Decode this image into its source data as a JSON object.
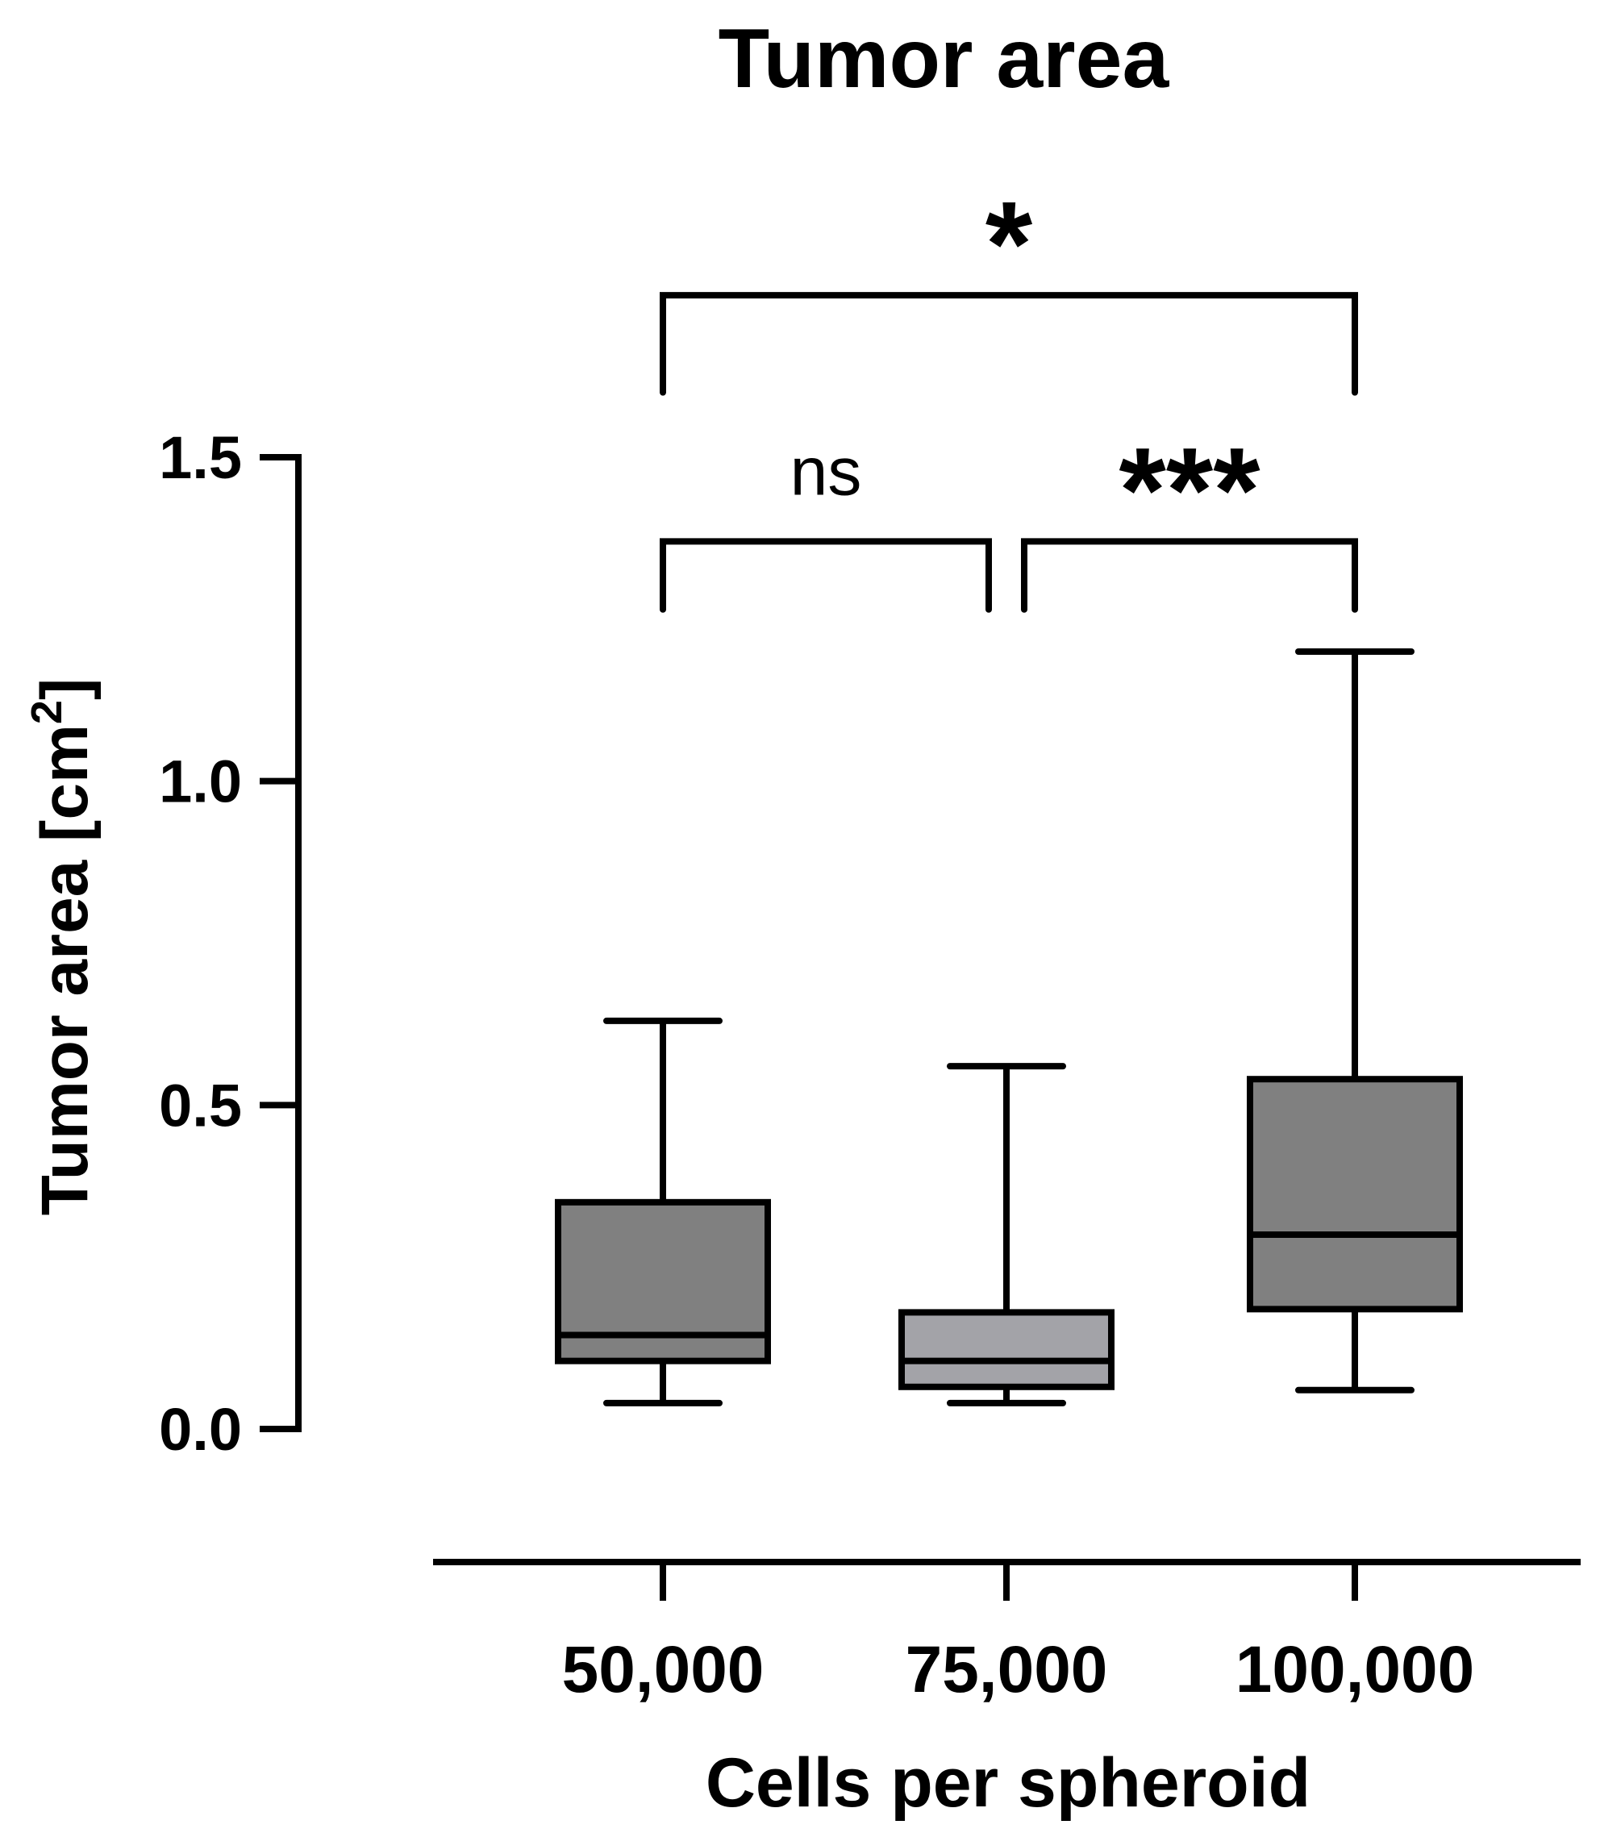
{
  "chart_data": {
    "type": "box",
    "title": "Tumor area",
    "xlabel": "Cells per spheroid",
    "ylabel": {
      "main": "Tumor area [cm",
      "superscript": "2",
      "closing": "]"
    },
    "ylim": [
      0.0,
      1.5
    ],
    "yticks": [
      {
        "value": 0.0,
        "label": "0.0"
      },
      {
        "value": 0.5,
        "label": "0.5"
      },
      {
        "value": 1.0,
        "label": "1.0"
      },
      {
        "value": 1.5,
        "label": "1.5"
      }
    ],
    "categories": [
      "50,000",
      "75,000",
      "100,000"
    ],
    "boxes": [
      {
        "category": "50,000",
        "min": 0.04,
        "q1": 0.105,
        "median": 0.145,
        "q3": 0.35,
        "max": 0.63,
        "color": "#808080"
      },
      {
        "category": "75,000",
        "min": 0.04,
        "q1": 0.065,
        "median": 0.105,
        "q3": 0.18,
        "max": 0.56,
        "color": "#a3a3a8"
      },
      {
        "category": "100,000",
        "min": 0.06,
        "q1": 0.185,
        "median": 0.3,
        "q3": 0.54,
        "max": 1.2,
        "color": "#808080"
      }
    ],
    "comparisons": [
      {
        "from": 0,
        "to": 2,
        "label": "*",
        "y_value": 1.75,
        "leg_value": 1.6
      },
      {
        "from": 0,
        "to": 1,
        "label": "ns",
        "y_value": 1.37,
        "leg_value": 1.265
      },
      {
        "from": 1,
        "to": 2,
        "label": "***",
        "y_value": 1.37,
        "leg_value": 1.265
      }
    ],
    "grid": false,
    "legend": "none"
  }
}
